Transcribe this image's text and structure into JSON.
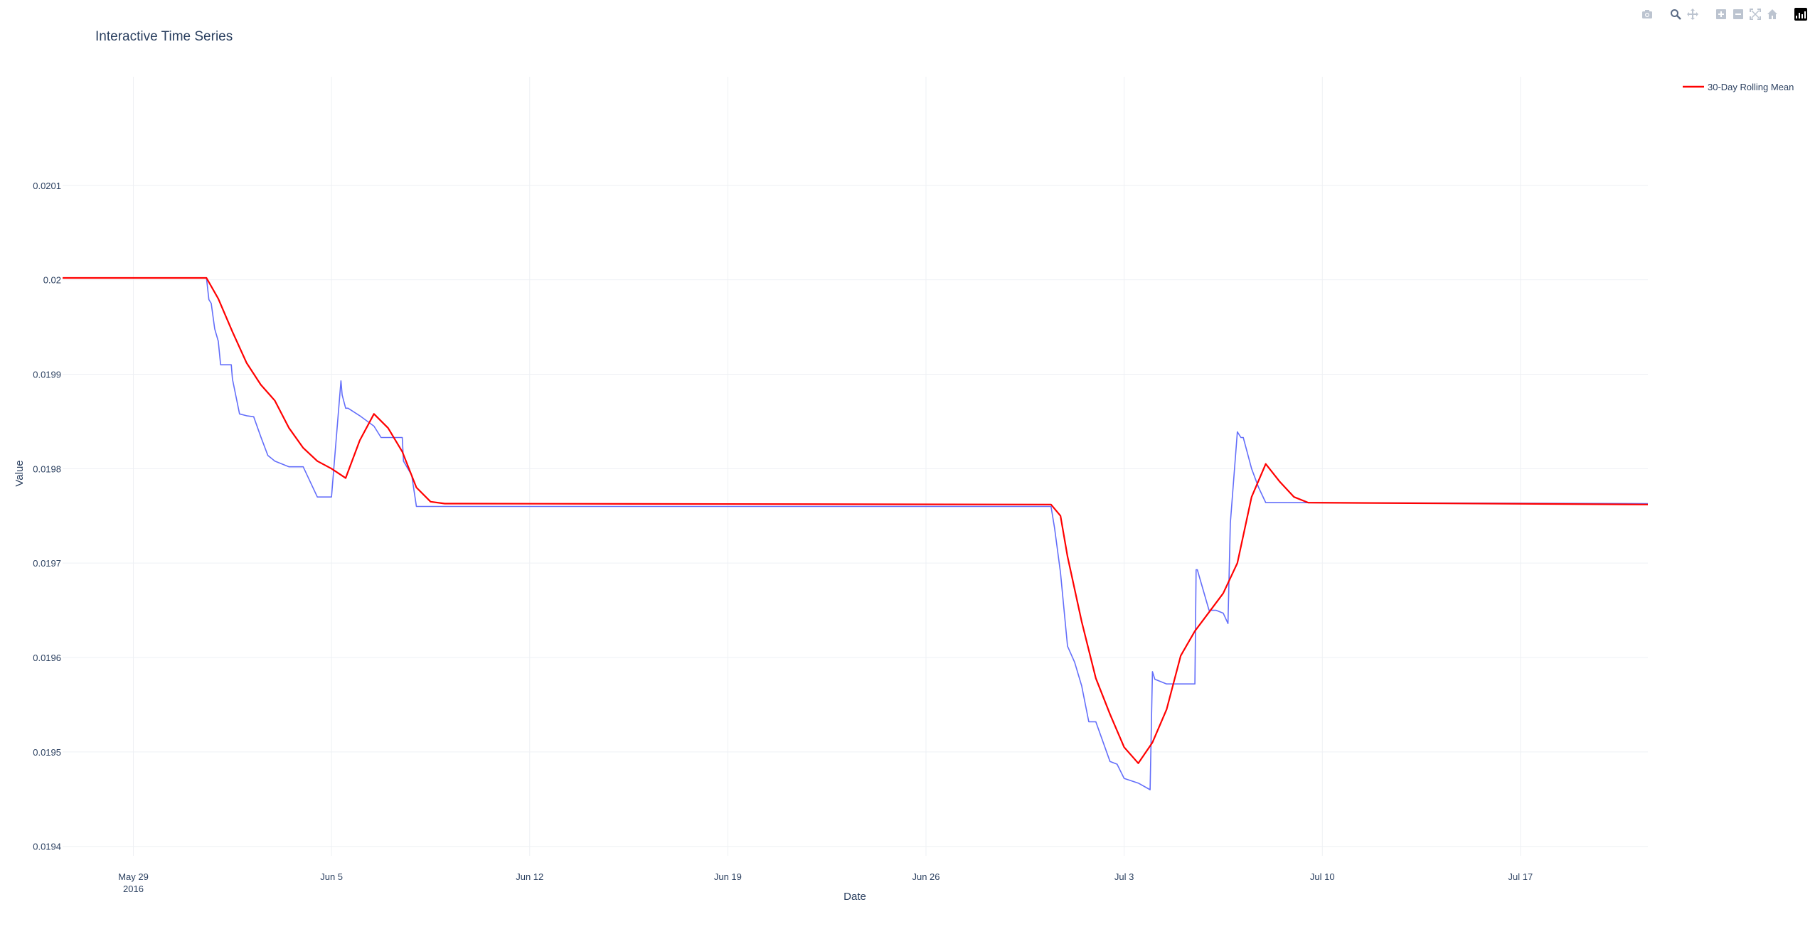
{
  "modebar": {
    "buttons": [
      {
        "name": "camera-icon"
      },
      {
        "name": "zoom-icon"
      },
      {
        "name": "pan-icon"
      },
      {
        "name": "zoom-in-icon"
      },
      {
        "name": "zoom-out-icon"
      },
      {
        "name": "autoscale-icon"
      },
      {
        "name": "home-icon"
      },
      {
        "name": "plotly-logo-icon"
      }
    ],
    "icon_color": "#bcc4d0",
    "active_color": "#5a6b85"
  },
  "chart_data": {
    "type": "line",
    "title": "Interactive Time Series",
    "xlabel": "Date",
    "ylabel": "Value",
    "xlim": [
      "2016-05-26T12:00",
      "2016-07-21T12:00"
    ],
    "ylim": [
      0.01939,
      0.020215
    ],
    "x_ticks": [
      {
        "x": "2016-05-29",
        "label": "May 29",
        "sublabel": "2016"
      },
      {
        "x": "2016-06-05",
        "label": "Jun 5",
        "sublabel": ""
      },
      {
        "x": "2016-06-12",
        "label": "Jun 12",
        "sublabel": ""
      },
      {
        "x": "2016-06-19",
        "label": "Jun 19",
        "sublabel": ""
      },
      {
        "x": "2016-06-26",
        "label": "Jun 26",
        "sublabel": ""
      },
      {
        "x": "2016-07-03",
        "label": "Jul 3",
        "sublabel": ""
      },
      {
        "x": "2016-07-10",
        "label": "Jul 10",
        "sublabel": ""
      },
      {
        "x": "2016-07-17",
        "label": "Jul 17",
        "sublabel": ""
      }
    ],
    "y_ticks": [
      {
        "y": 0.0194,
        "label": "0.0194"
      },
      {
        "y": 0.0195,
        "label": "0.0195"
      },
      {
        "y": 0.0196,
        "label": "0.0196"
      },
      {
        "y": 0.0197,
        "label": "0.0197"
      },
      {
        "y": 0.0198,
        "label": "0.0198"
      },
      {
        "y": 0.0199,
        "label": "0.0199"
      },
      {
        "y": 0.02,
        "label": "0.02"
      },
      {
        "y": 0.0201,
        "label": "0.0201"
      }
    ],
    "grid": true,
    "legend_position": "top-right",
    "series": [
      {
        "name": "",
        "color": "#636efa",
        "shape": "linear",
        "x": [
          "2016-05-26T12:00",
          "2016-05-31T14:00",
          "2016-05-31T16:00",
          "2016-05-31T18:00",
          "2016-05-31T21:00",
          "2016-06-01T00:00",
          "2016-06-01T02:00",
          "2016-06-01T06:00",
          "2016-06-01T11:00",
          "2016-06-01T12:00",
          "2016-06-01T18:00",
          "2016-06-02T00:00",
          "2016-06-02T06:00",
          "2016-06-02T12:00",
          "2016-06-02T18:00",
          "2016-06-03T00:00",
          "2016-06-03T06:00",
          "2016-06-03T12:00",
          "2016-06-04T00:00",
          "2016-06-04T12:00",
          "2016-06-05T00:00",
          "2016-06-05T08:00",
          "2016-06-05T09:00",
          "2016-06-05T12:00",
          "2016-06-05T13:00",
          "2016-06-05T14:00",
          "2016-06-06T00:00",
          "2016-06-06T12:00",
          "2016-06-06T18:00",
          "2016-06-07T00:00",
          "2016-06-07T12:00",
          "2016-06-07T13:00",
          "2016-06-07T20:00",
          "2016-06-08T00:00",
          "2016-06-08T06:00",
          "2016-06-30T10:00",
          "2016-06-30T13:00",
          "2016-06-30T18:00",
          "2016-07-01T00:00",
          "2016-07-01T06:00",
          "2016-07-01T12:00",
          "2016-07-01T18:00",
          "2016-07-02T00:00",
          "2016-07-02T12:00",
          "2016-07-02T18:00",
          "2016-07-03T00:00",
          "2016-07-03T12:00",
          "2016-07-03T22:00",
          "2016-07-04T00:00",
          "2016-07-04T02:00",
          "2016-07-04T06:00",
          "2016-07-04T12:00",
          "2016-07-05T00:00",
          "2016-07-05T12:00",
          "2016-07-05T13:00",
          "2016-07-05T14:00",
          "2016-07-06T00:00",
          "2016-07-06T06:00",
          "2016-07-06T12:00",
          "2016-07-06T16:00",
          "2016-07-06T18:00",
          "2016-07-07T00:00",
          "2016-07-07T03:00",
          "2016-07-07T05:00",
          "2016-07-07T12:00",
          "2016-07-07T18:00",
          "2016-07-08T00:00",
          "2016-07-08T12:00",
          "2016-07-21T12:00"
        ],
        "values": [
          0.020002,
          0.020002,
          0.019979,
          0.019975,
          0.019948,
          0.019935,
          0.01991,
          0.01991,
          0.01991,
          0.019895,
          0.019858,
          0.019856,
          0.019855,
          0.019834,
          0.019814,
          0.019808,
          0.019805,
          0.019802,
          0.019802,
          0.01977,
          0.01977,
          0.019893,
          0.019878,
          0.019864,
          0.019864,
          0.019864,
          0.019856,
          0.019845,
          0.019833,
          0.019833,
          0.019833,
          0.019808,
          0.019793,
          0.01976,
          0.01976,
          0.01976,
          0.019737,
          0.01969,
          0.019612,
          0.019595,
          0.01957,
          0.019532,
          0.019532,
          0.01949,
          0.019487,
          0.019472,
          0.019467,
          0.01946,
          0.019585,
          0.019577,
          0.019575,
          0.019572,
          0.019572,
          0.019572,
          0.019693,
          0.019693,
          0.01965,
          0.01965,
          0.019647,
          0.019636,
          0.019742,
          0.019839,
          0.019833,
          0.019833,
          0.0198,
          0.01978,
          0.019764,
          0.019764,
          0.019763
        ]
      },
      {
        "name": "30-Day Rolling Mean",
        "color": "#ff0000",
        "shape": "linear",
        "x": [
          "2016-05-26T12:00",
          "2016-05-31T14:00",
          "2016-06-01T00:00",
          "2016-06-01T12:00",
          "2016-06-02T00:00",
          "2016-06-02T12:00",
          "2016-06-03T00:00",
          "2016-06-03T12:00",
          "2016-06-04T00:00",
          "2016-06-04T12:00",
          "2016-06-05T00:00",
          "2016-06-05T12:00",
          "2016-06-06T00:00",
          "2016-06-06T12:00",
          "2016-06-07T00:00",
          "2016-06-07T12:00",
          "2016-06-08T00:00",
          "2016-06-08T12:00",
          "2016-06-09T00:00",
          "2016-06-09T12:00",
          "2016-06-30T10:00",
          "2016-06-30T18:00",
          "2016-07-01T00:00",
          "2016-07-01T12:00",
          "2016-07-02T00:00",
          "2016-07-02T12:00",
          "2016-07-03T00:00",
          "2016-07-03T12:00",
          "2016-07-04T00:00",
          "2016-07-04T12:00",
          "2016-07-05T00:00",
          "2016-07-05T12:00",
          "2016-07-06T00:00",
          "2016-07-06T12:00",
          "2016-07-07T00:00",
          "2016-07-07T12:00",
          "2016-07-08T00:00",
          "2016-07-08T12:00",
          "2016-07-09T00:00",
          "2016-07-09T12:00",
          "2016-07-21T12:00"
        ],
        "values": [
          0.020002,
          0.020002,
          0.01998,
          0.019945,
          0.019912,
          0.019889,
          0.019872,
          0.019843,
          0.019822,
          0.019808,
          0.0198,
          0.01979,
          0.01983,
          0.019858,
          0.019843,
          0.019818,
          0.01978,
          0.019765,
          0.019763,
          0.019763,
          0.019762,
          0.01975,
          0.019707,
          0.019638,
          0.019578,
          0.01954,
          0.019505,
          0.019488,
          0.01951,
          0.019545,
          0.019602,
          0.019628,
          0.019648,
          0.019668,
          0.0197,
          0.01977,
          0.019805,
          0.019786,
          0.01977,
          0.019764,
          0.019762
        ]
      }
    ]
  }
}
